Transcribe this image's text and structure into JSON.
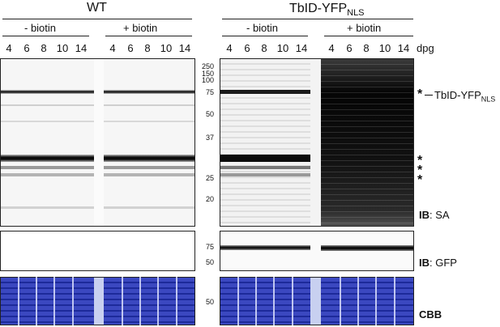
{
  "headers": {
    "wt": "WT",
    "tbid_main": "TbID-YFP",
    "tbid_sub": "NLS"
  },
  "conditions": {
    "minus": "- biotin",
    "plus": "+ biotin"
  },
  "lanes": [
    "4",
    "6",
    "8",
    "10",
    "14"
  ],
  "dpg": "dpg",
  "mw_markers": {
    "sa": [
      "250",
      "150",
      "100",
      "75",
      "50",
      "37",
      "25",
      "20"
    ],
    "gfp": [
      "75",
      "50"
    ],
    "cbb": [
      "50"
    ]
  },
  "annotations": {
    "asterisk": "*",
    "tbid_main": "TbID-YFP",
    "tbid_sub": "NLS"
  },
  "blot_labels": {
    "sa_ib": "IB",
    "sa_name": ": SA",
    "gfp_ib": "IB",
    "gfp_name": ": GFP",
    "cbb": "CBB"
  },
  "colors": {
    "coomassie": "#3440b8",
    "coomassie_dark": "#1c2690",
    "band": "#111111"
  }
}
